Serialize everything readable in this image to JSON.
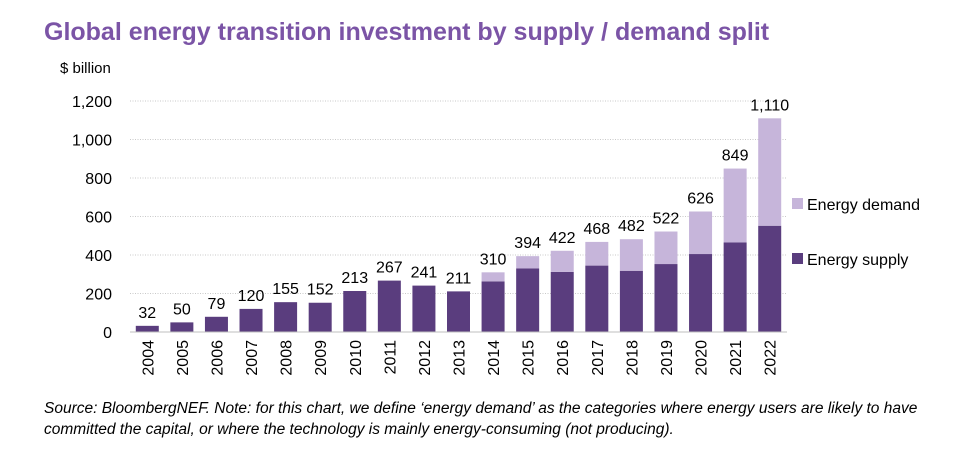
{
  "chart_data": {
    "type": "bar",
    "stacked": true,
    "title": "Global energy transition investment by supply / demand split",
    "ylabel": "$ billion",
    "xlabel": "",
    "ylim": [
      0,
      1200
    ],
    "yticks": [
      0,
      200,
      400,
      600,
      800,
      1000,
      1200
    ],
    "ytick_labels": [
      "0",
      "200",
      "400",
      "600",
      "800",
      "1,000",
      "1,200"
    ],
    "grid": true,
    "legend_position": "right",
    "categories": [
      "2004",
      "2005",
      "2006",
      "2007",
      "2008",
      "2009",
      "2010",
      "2011",
      "2012",
      "2013",
      "2014",
      "2015",
      "2016",
      "2017",
      "2018",
      "2019",
      "2020",
      "2021",
      "2022"
    ],
    "series": [
      {
        "name": "Energy supply",
        "color": "#5a3d7e",
        "values": [
          32,
          50,
          79,
          120,
          155,
          152,
          213,
          267,
          241,
          211,
          263,
          330,
          312,
          345,
          318,
          353,
          405,
          465,
          552
        ]
      },
      {
        "name": "Energy demand",
        "color": "#c6b5da",
        "values": [
          0,
          0,
          0,
          0,
          0,
          0,
          0,
          0,
          0,
          0,
          47,
          64,
          110,
          123,
          164,
          169,
          221,
          384,
          558
        ]
      }
    ],
    "total_labels": [
      "32",
      "50",
      "79",
      "120",
      "155",
      "152",
      "213",
      "267",
      "241",
      "211",
      "310",
      "394",
      "422",
      "468",
      "482",
      "522",
      "626",
      "849",
      "1,110"
    ]
  },
  "source_note": "Source: BloombergNEF. Note: for this chart, we define ‘energy demand’ as the categories where energy users are likely to have committed the capital, or where the technology is mainly energy-consuming (not producing)."
}
